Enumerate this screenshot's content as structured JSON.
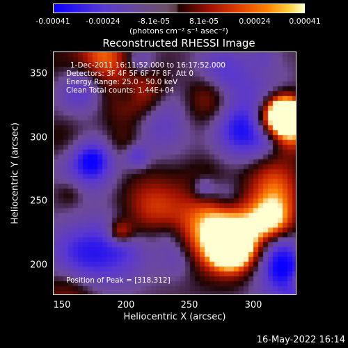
{
  "colorbar": {
    "ticks": [
      "-0.00041",
      "-0.00024",
      "-8.1e-05",
      "8.1e-05",
      "0.00024",
      "0.00041"
    ],
    "units_label": "(photons cm⁻² s⁻¹ asec⁻²)"
  },
  "title": "Reconstructed RHESSI Image",
  "overlay": {
    "line1": "1-Dec-2011 16:11:52.000 to 16:17:52.000",
    "line2": "Detectors: 3F 4F 5F 6F 7F 8F, Att 0",
    "line3": "Energy Range: 25.0 - 50.0 keV",
    "line4": "Clean     Total counts: 1.44E+04",
    "peak": "Position of Peak = [318,312]"
  },
  "axes": {
    "xlabel": "Heliocentric X (arcsec)",
    "ylabel": "Heliocentric Y (arcsec)",
    "xticks": [
      "150",
      "200",
      "250",
      "300"
    ],
    "yticks": [
      "200",
      "250",
      "300",
      "350"
    ]
  },
  "footer": {
    "date": "16-May-2022 16:14"
  },
  "colors": {
    "background": "#000000",
    "text": "#ffffff"
  }
}
